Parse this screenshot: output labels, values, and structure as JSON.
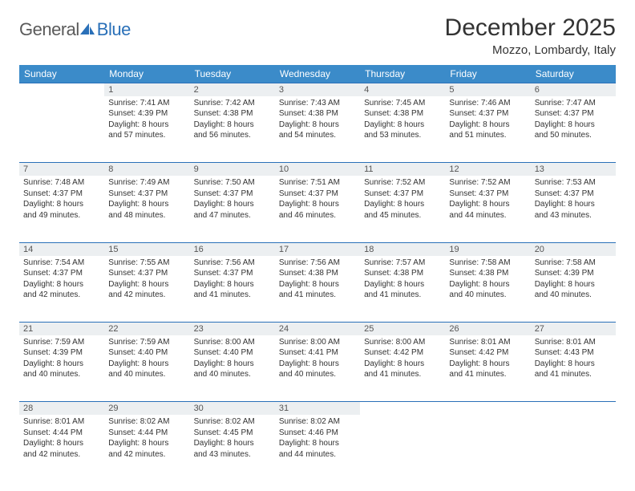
{
  "logo": {
    "text1": "General",
    "text2": "Blue"
  },
  "title": "December 2025",
  "location": "Mozzo, Lombardy, Italy",
  "colors": {
    "header_bg": "#3b8bc9",
    "header_text": "#ffffff",
    "daynum_bg": "#eceff1",
    "border": "#2a70b8",
    "text": "#333333",
    "logo_gray": "#5a5a5a",
    "logo_blue": "#2a70b8"
  },
  "day_headers": [
    "Sunday",
    "Monday",
    "Tuesday",
    "Wednesday",
    "Thursday",
    "Friday",
    "Saturday"
  ],
  "weeks": [
    [
      null,
      {
        "n": "1",
        "sr": "Sunrise: 7:41 AM",
        "ss": "Sunset: 4:39 PM",
        "d1": "Daylight: 8 hours",
        "d2": "and 57 minutes."
      },
      {
        "n": "2",
        "sr": "Sunrise: 7:42 AM",
        "ss": "Sunset: 4:38 PM",
        "d1": "Daylight: 8 hours",
        "d2": "and 56 minutes."
      },
      {
        "n": "3",
        "sr": "Sunrise: 7:43 AM",
        "ss": "Sunset: 4:38 PM",
        "d1": "Daylight: 8 hours",
        "d2": "and 54 minutes."
      },
      {
        "n": "4",
        "sr": "Sunrise: 7:45 AM",
        "ss": "Sunset: 4:38 PM",
        "d1": "Daylight: 8 hours",
        "d2": "and 53 minutes."
      },
      {
        "n": "5",
        "sr": "Sunrise: 7:46 AM",
        "ss": "Sunset: 4:37 PM",
        "d1": "Daylight: 8 hours",
        "d2": "and 51 minutes."
      },
      {
        "n": "6",
        "sr": "Sunrise: 7:47 AM",
        "ss": "Sunset: 4:37 PM",
        "d1": "Daylight: 8 hours",
        "d2": "and 50 minutes."
      }
    ],
    [
      {
        "n": "7",
        "sr": "Sunrise: 7:48 AM",
        "ss": "Sunset: 4:37 PM",
        "d1": "Daylight: 8 hours",
        "d2": "and 49 minutes."
      },
      {
        "n": "8",
        "sr": "Sunrise: 7:49 AM",
        "ss": "Sunset: 4:37 PM",
        "d1": "Daylight: 8 hours",
        "d2": "and 48 minutes."
      },
      {
        "n": "9",
        "sr": "Sunrise: 7:50 AM",
        "ss": "Sunset: 4:37 PM",
        "d1": "Daylight: 8 hours",
        "d2": "and 47 minutes."
      },
      {
        "n": "10",
        "sr": "Sunrise: 7:51 AM",
        "ss": "Sunset: 4:37 PM",
        "d1": "Daylight: 8 hours",
        "d2": "and 46 minutes."
      },
      {
        "n": "11",
        "sr": "Sunrise: 7:52 AM",
        "ss": "Sunset: 4:37 PM",
        "d1": "Daylight: 8 hours",
        "d2": "and 45 minutes."
      },
      {
        "n": "12",
        "sr": "Sunrise: 7:52 AM",
        "ss": "Sunset: 4:37 PM",
        "d1": "Daylight: 8 hours",
        "d2": "and 44 minutes."
      },
      {
        "n": "13",
        "sr": "Sunrise: 7:53 AM",
        "ss": "Sunset: 4:37 PM",
        "d1": "Daylight: 8 hours",
        "d2": "and 43 minutes."
      }
    ],
    [
      {
        "n": "14",
        "sr": "Sunrise: 7:54 AM",
        "ss": "Sunset: 4:37 PM",
        "d1": "Daylight: 8 hours",
        "d2": "and 42 minutes."
      },
      {
        "n": "15",
        "sr": "Sunrise: 7:55 AM",
        "ss": "Sunset: 4:37 PM",
        "d1": "Daylight: 8 hours",
        "d2": "and 42 minutes."
      },
      {
        "n": "16",
        "sr": "Sunrise: 7:56 AM",
        "ss": "Sunset: 4:37 PM",
        "d1": "Daylight: 8 hours",
        "d2": "and 41 minutes."
      },
      {
        "n": "17",
        "sr": "Sunrise: 7:56 AM",
        "ss": "Sunset: 4:38 PM",
        "d1": "Daylight: 8 hours",
        "d2": "and 41 minutes."
      },
      {
        "n": "18",
        "sr": "Sunrise: 7:57 AM",
        "ss": "Sunset: 4:38 PM",
        "d1": "Daylight: 8 hours",
        "d2": "and 41 minutes."
      },
      {
        "n": "19",
        "sr": "Sunrise: 7:58 AM",
        "ss": "Sunset: 4:38 PM",
        "d1": "Daylight: 8 hours",
        "d2": "and 40 minutes."
      },
      {
        "n": "20",
        "sr": "Sunrise: 7:58 AM",
        "ss": "Sunset: 4:39 PM",
        "d1": "Daylight: 8 hours",
        "d2": "and 40 minutes."
      }
    ],
    [
      {
        "n": "21",
        "sr": "Sunrise: 7:59 AM",
        "ss": "Sunset: 4:39 PM",
        "d1": "Daylight: 8 hours",
        "d2": "and 40 minutes."
      },
      {
        "n": "22",
        "sr": "Sunrise: 7:59 AM",
        "ss": "Sunset: 4:40 PM",
        "d1": "Daylight: 8 hours",
        "d2": "and 40 minutes."
      },
      {
        "n": "23",
        "sr": "Sunrise: 8:00 AM",
        "ss": "Sunset: 4:40 PM",
        "d1": "Daylight: 8 hours",
        "d2": "and 40 minutes."
      },
      {
        "n": "24",
        "sr": "Sunrise: 8:00 AM",
        "ss": "Sunset: 4:41 PM",
        "d1": "Daylight: 8 hours",
        "d2": "and 40 minutes."
      },
      {
        "n": "25",
        "sr": "Sunrise: 8:00 AM",
        "ss": "Sunset: 4:42 PM",
        "d1": "Daylight: 8 hours",
        "d2": "and 41 minutes."
      },
      {
        "n": "26",
        "sr": "Sunrise: 8:01 AM",
        "ss": "Sunset: 4:42 PM",
        "d1": "Daylight: 8 hours",
        "d2": "and 41 minutes."
      },
      {
        "n": "27",
        "sr": "Sunrise: 8:01 AM",
        "ss": "Sunset: 4:43 PM",
        "d1": "Daylight: 8 hours",
        "d2": "and 41 minutes."
      }
    ],
    [
      {
        "n": "28",
        "sr": "Sunrise: 8:01 AM",
        "ss": "Sunset: 4:44 PM",
        "d1": "Daylight: 8 hours",
        "d2": "and 42 minutes."
      },
      {
        "n": "29",
        "sr": "Sunrise: 8:02 AM",
        "ss": "Sunset: 4:44 PM",
        "d1": "Daylight: 8 hours",
        "d2": "and 42 minutes."
      },
      {
        "n": "30",
        "sr": "Sunrise: 8:02 AM",
        "ss": "Sunset: 4:45 PM",
        "d1": "Daylight: 8 hours",
        "d2": "and 43 minutes."
      },
      {
        "n": "31",
        "sr": "Sunrise: 8:02 AM",
        "ss": "Sunset: 4:46 PM",
        "d1": "Daylight: 8 hours",
        "d2": "and 44 minutes."
      },
      null,
      null,
      null
    ]
  ]
}
